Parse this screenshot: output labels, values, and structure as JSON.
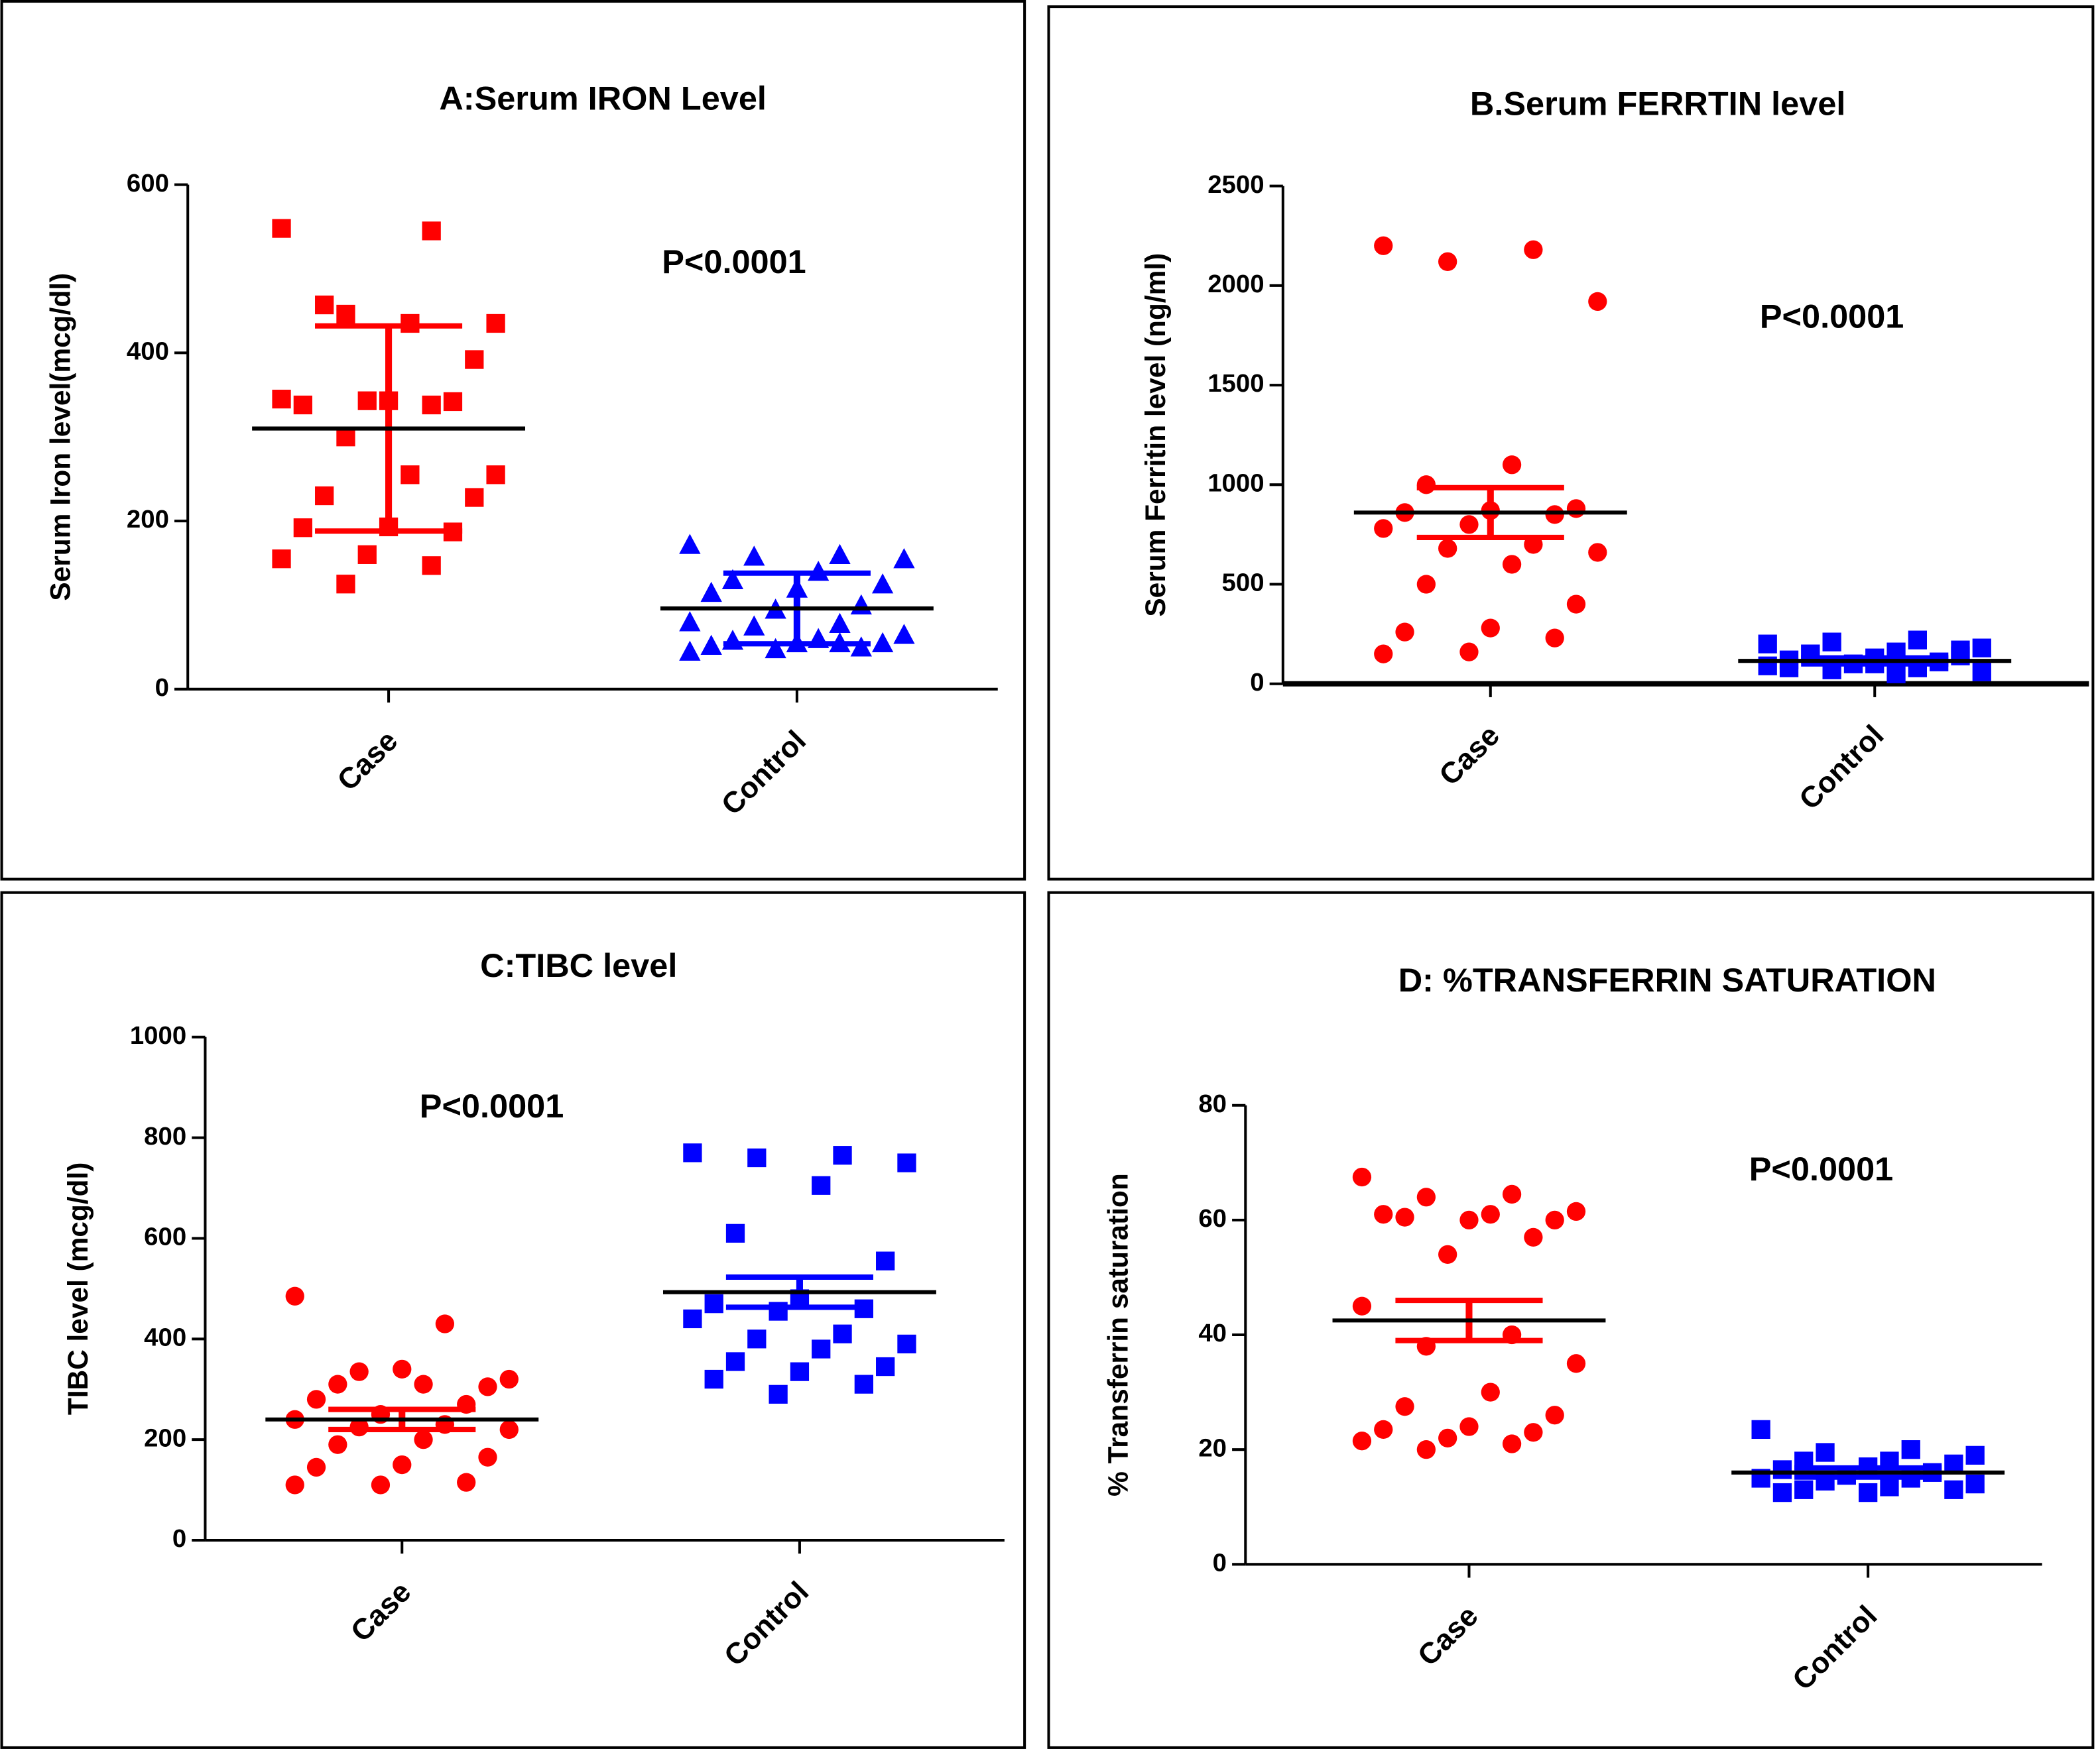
{
  "chart_data": [
    {
      "type": "dot",
      "title": "A:Serum IRON Level",
      "ylabel": "Serum Iron level(mcg/dl)",
      "annotation": "P<0.0001",
      "categories": [
        "Case",
        "Control"
      ],
      "colors": [
        "#ff0000",
        "#0000ff"
      ],
      "markers": [
        "square",
        "triangle"
      ],
      "values": [
        [
          548,
          545,
          446,
          435,
          435,
          457,
          392,
          343,
          338,
          342,
          343,
          345,
          338,
          300,
          255,
          255,
          230,
          228,
          193,
          192,
          187,
          160,
          155,
          147,
          125
        ],
        [
          172,
          160,
          158,
          155,
          140,
          130,
          125,
          120,
          115,
          100,
          95,
          80,
          78,
          75,
          65,
          60,
          58,
          55,
          55,
          52,
          50,
          48,
          45,
          55
        ]
      ],
      "means": [
        310,
        96
      ],
      "errors": [
        122,
        42
      ],
      "ylim": [
        0,
        600
      ],
      "yticks": [
        0,
        200,
        400,
        600
      ]
    },
    {
      "type": "dot",
      "title": "B.Serum FERRTIN level",
      "ylabel": "Serum Ferritin level (ng/ml)",
      "annotation": "P<0.0001",
      "categories": [
        "Case",
        "Control"
      ],
      "colors": [
        "#ff0000",
        "#0000ff"
      ],
      "markers": [
        "circle",
        "square"
      ],
      "values": [
        [
          2200,
          2180,
          2120,
          1920,
          1100,
          1000,
          880,
          870,
          860,
          850,
          800,
          780,
          700,
          680,
          660,
          600,
          500,
          400,
          280,
          260,
          230,
          160,
          150
        ],
        [
          200,
          220,
          210,
          180,
          160,
          150,
          140,
          130,
          120,
          110,
          100,
          90,
          80,
          70,
          60,
          50,
          150,
          170,
          100,
          80
        ]
      ],
      "means": [
        860,
        115
      ],
      "errors": [
        125,
        15
      ],
      "ylim": [
        0,
        2500
      ],
      "yticks": [
        0,
        500,
        1000,
        1500,
        2000,
        2500
      ]
    },
    {
      "type": "dot",
      "title": "C:TIBC level",
      "ylabel": "TIBC level (mcg/dl)",
      "annotation": "P<0.0001",
      "categories": [
        "Case",
        "Control"
      ],
      "colors": [
        "#ff0000",
        "#0000ff"
      ],
      "markers": [
        "circle",
        "square"
      ],
      "values": [
        [
          485,
          430,
          335,
          320,
          310,
          310,
          305,
          340,
          280,
          270,
          250,
          240,
          230,
          225,
          220,
          200,
          190,
          165,
          150,
          145,
          115,
          110,
          110
        ],
        [
          770,
          765,
          760,
          750,
          705,
          610,
          555,
          480,
          470,
          460,
          455,
          440,
          410,
          400,
          390,
          380,
          355,
          345,
          335,
          320,
          310,
          290
        ]
      ],
      "means": [
        240,
        493
      ],
      "errors": [
        20,
        30
      ],
      "ylim": [
        0,
        1000
      ],
      "yticks": [
        0,
        200,
        400,
        600,
        800,
        1000
      ]
    },
    {
      "type": "dot",
      "title": "D: %TRANSFERRIN SATURATION",
      "ylabel": "% Transferrin saturation",
      "annotation": "P<0.0001",
      "categories": [
        "Case",
        "Control"
      ],
      "colors": [
        "#ff0000",
        "#0000ff"
      ],
      "markers": [
        "circle",
        "square"
      ],
      "values": [
        [
          67.5,
          64.5,
          64,
          61.5,
          61,
          60.5,
          60,
          60,
          61,
          57,
          54,
          45,
          40,
          38,
          35,
          30,
          27.5,
          26,
          24,
          23.5,
          23,
          22,
          21.5,
          21,
          20
        ],
        [
          23.5,
          20,
          19.5,
          19,
          18,
          18,
          17.5,
          17,
          16.5,
          16,
          15.5,
          15,
          15,
          14.5,
          14,
          13.5,
          13,
          13,
          12.5,
          12.5
        ]
      ],
      "means": [
        42.5,
        16
      ],
      "errors": [
        3.5,
        0.8
      ],
      "ylim": [
        0,
        80
      ],
      "yticks": [
        0,
        20,
        40,
        60,
        80
      ]
    }
  ]
}
